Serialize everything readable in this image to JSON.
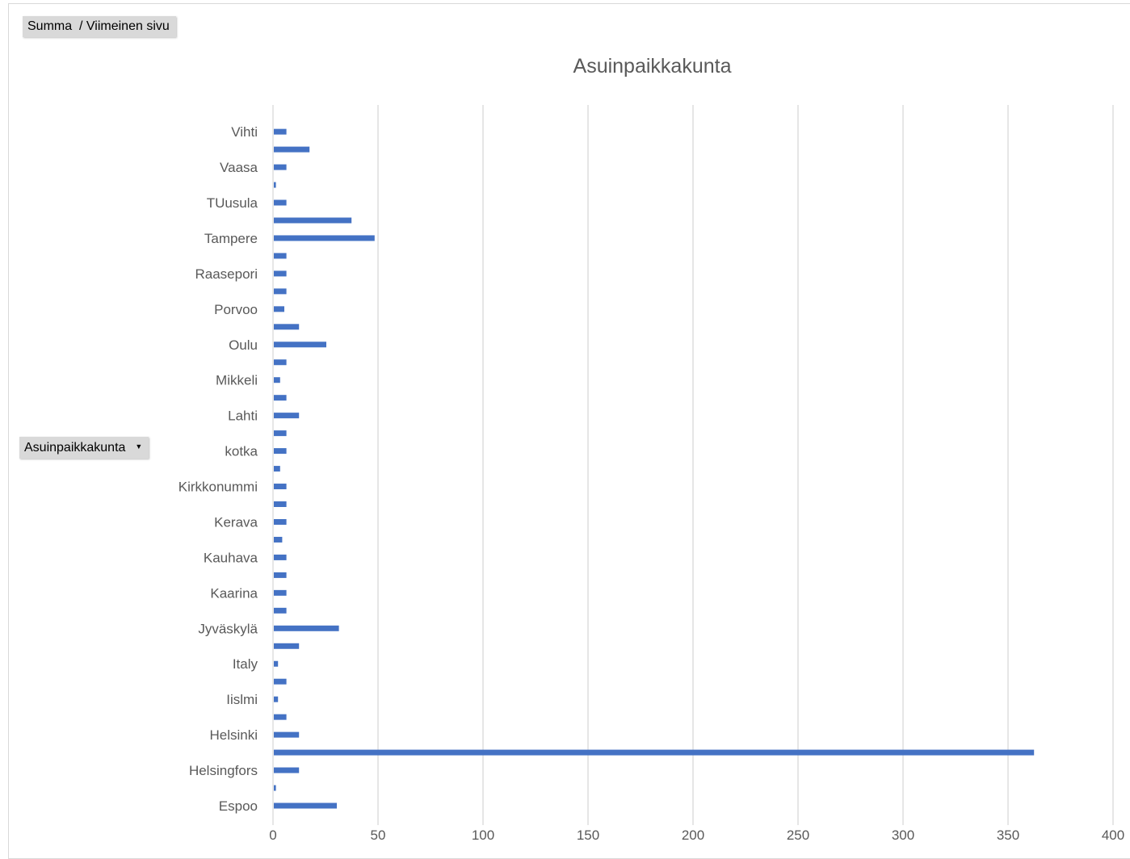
{
  "pivot": {
    "value_field": "Summa  / Viimeinen sivu",
    "row_field": "Asuinpaikkakunta",
    "dropdown_icon": "chevron-down-icon"
  },
  "chart_data": {
    "type": "bar",
    "orientation": "horizontal",
    "title": "Asuinpaikkakunta",
    "xlabel": "",
    "ylabel": "",
    "xlim": [
      0,
      400
    ],
    "x_ticks": [
      0,
      50,
      100,
      150,
      200,
      250,
      300,
      350,
      400
    ],
    "grid": true,
    "legend": "none",
    "bar_color": "#4472c4",
    "grid_color": "#d9d9d9",
    "categories_bottom_to_top": [
      "Espoo",
      "",
      "Helsingfors",
      "",
      "Helsinki",
      "",
      "Iislmi",
      "",
      "Italy",
      "",
      "Jyväskylä",
      "",
      "Kaarina",
      "",
      "Kauhava",
      "",
      "Kerava",
      "",
      "Kirkkonummi",
      "",
      "kotka",
      "",
      "Lahti",
      "",
      "Mikkeli",
      "",
      "Oulu",
      "",
      "Porvoo",
      "",
      "Raasepori",
      "",
      "Tampere",
      "",
      "TUusula",
      "",
      "Vaasa",
      "",
      "Vihti"
    ],
    "values_bottom_to_top": [
      30,
      1,
      12,
      362,
      12,
      6,
      2,
      6,
      2,
      12,
      31,
      6,
      6,
      6,
      6,
      4,
      6,
      6,
      6,
      3,
      6,
      6,
      12,
      6,
      3,
      6,
      25,
      12,
      5,
      6,
      6,
      6,
      48,
      37,
      6,
      1,
      6,
      17,
      6
    ]
  }
}
